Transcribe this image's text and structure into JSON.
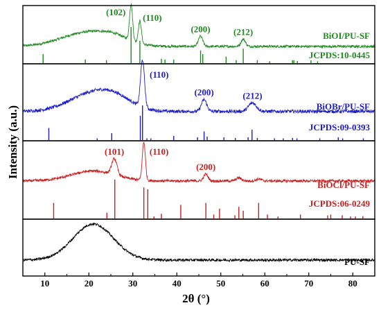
{
  "chart_data": {
    "type": "line",
    "xlabel": "2θ (°)",
    "ylabel": "Intensity (a.u.)",
    "xlim": [
      5,
      85
    ],
    "xticks": [
      10,
      20,
      30,
      40,
      50,
      60,
      70,
      80
    ],
    "grid": false,
    "panels": [
      {
        "sample_label": "BiOI/PU-SF",
        "jcpds_label": "JCPDS:10-0445",
        "color": "#1f8a1f",
        "peaks": [
          {
            "x": 29.6,
            "h": 1.0,
            "w": 0.35
          },
          {
            "x": 31.6,
            "h": 0.62,
            "w": 0.35
          },
          {
            "x": 45.4,
            "h": 0.28,
            "w": 0.5
          },
          {
            "x": 55.1,
            "h": 0.2,
            "w": 0.5
          }
        ],
        "hump": [
          {
            "c": 20.0,
            "h": 0.4,
            "w": 6.0
          },
          {
            "c": 26.0,
            "h": 0.12,
            "w": 3.0
          }
        ],
        "miller": [
          {
            "x": 29.6,
            "text": "(102)"
          },
          {
            "x": 31.6,
            "text": "(110)"
          },
          {
            "x": 45.4,
            "text": "(200)"
          },
          {
            "x": 55.1,
            "text": "(212)"
          }
        ],
        "sticks": [
          [
            9.6,
            0.25
          ],
          [
            19.2,
            0.1
          ],
          [
            24.0,
            0.08
          ],
          [
            29.6,
            1.0
          ],
          [
            31.6,
            0.62
          ],
          [
            36.5,
            0.12
          ],
          [
            37.3,
            0.1
          ],
          [
            39.3,
            0.1
          ],
          [
            45.4,
            0.35
          ],
          [
            45.9,
            0.25
          ],
          [
            51.2,
            0.18
          ],
          [
            53.5,
            0.08
          ],
          [
            55.1,
            0.4
          ],
          [
            58.3,
            0.08
          ],
          [
            61.1,
            0.05
          ],
          [
            66.3,
            0.08
          ],
          [
            66.6,
            0.08
          ],
          [
            67.4,
            0.06
          ],
          [
            70.5,
            0.08
          ],
          [
            72.0,
            0.05
          ]
        ]
      },
      {
        "sample_label": "BiOBr/PU-SF",
        "jcpds_label": "JCPDS:09-0393",
        "color": "#1c1ccc",
        "peaks": [
          {
            "x": 32.2,
            "h": 1.0,
            "w": 0.45
          },
          {
            "x": 46.2,
            "h": 0.25,
            "w": 0.6
          },
          {
            "x": 57.2,
            "h": 0.18,
            "w": 0.9
          }
        ],
        "hump": [
          {
            "c": 20.0,
            "h": 0.33,
            "w": 5.0
          },
          {
            "c": 26.0,
            "h": 0.25,
            "w": 4.0
          }
        ],
        "miller": [
          {
            "x": 32.2,
            "text": "(110)"
          },
          {
            "x": 46.2,
            "text": "(200)"
          },
          {
            "x": 57.2,
            "text": "(212)"
          }
        ],
        "sticks": [
          [
            10.9,
            0.35
          ],
          [
            21.9,
            0.05
          ],
          [
            25.2,
            0.2
          ],
          [
            31.7,
            0.7
          ],
          [
            32.2,
            1.0
          ],
          [
            33.2,
            0.05
          ],
          [
            34.1,
            0.05
          ],
          [
            39.3,
            0.12
          ],
          [
            44.7,
            0.08
          ],
          [
            46.2,
            0.25
          ],
          [
            46.9,
            0.1
          ],
          [
            50.7,
            0.08
          ],
          [
            53.3,
            0.06
          ],
          [
            56.2,
            0.08
          ],
          [
            57.1,
            0.3
          ],
          [
            58.3,
            0.06
          ],
          [
            62.2,
            0.05
          ],
          [
            64.2,
            0.05
          ],
          [
            66.3,
            0.06
          ],
          [
            67.3,
            0.05
          ],
          [
            72.5,
            0.05
          ],
          [
            76.7,
            0.08
          ],
          [
            77.7,
            0.05
          ],
          [
            82.4,
            0.05
          ]
        ]
      },
      {
        "sample_label": "BiOCl/PU-SF",
        "jcpds_label": "JCPDS:06-0249",
        "color": "#c81e1e",
        "peaks": [
          {
            "x": 25.8,
            "h": 0.42,
            "w": 0.6
          },
          {
            "x": 32.5,
            "h": 1.0,
            "w": 0.35
          },
          {
            "x": 46.6,
            "h": 0.18,
            "w": 0.5
          },
          {
            "x": 54.1,
            "h": 0.08,
            "w": 0.6
          },
          {
            "x": 58.6,
            "h": 0.05,
            "w": 0.6
          }
        ],
        "hump": [
          {
            "c": 21.0,
            "h": 0.26,
            "w": 5.0
          }
        ],
        "miller": [
          {
            "x": 25.8,
            "text": "(101)"
          },
          {
            "x": 32.5,
            "text": "(110)"
          },
          {
            "x": 46.6,
            "text": "(200)"
          }
        ],
        "sticks": [
          [
            12.0,
            0.4
          ],
          [
            24.1,
            0.15
          ],
          [
            25.9,
            1.0
          ],
          [
            32.5,
            0.8
          ],
          [
            33.4,
            0.75
          ],
          [
            34.8,
            0.05
          ],
          [
            36.5,
            0.12
          ],
          [
            40.9,
            0.35
          ],
          [
            46.6,
            0.4
          ],
          [
            48.4,
            0.1
          ],
          [
            49.7,
            0.25
          ],
          [
            53.2,
            0.08
          ],
          [
            54.1,
            0.3
          ],
          [
            55.1,
            0.2
          ],
          [
            58.6,
            0.4
          ],
          [
            60.6,
            0.1
          ],
          [
            63.0,
            0.05
          ],
          [
            68.1,
            0.1
          ],
          [
            74.3,
            0.08
          ],
          [
            75.0,
            0.1
          ],
          [
            77.6,
            0.08
          ],
          [
            79.5,
            0.05
          ],
          [
            80.6,
            0.05
          ],
          [
            82.3,
            0.06
          ]
        ]
      },
      {
        "sample_label": "PU-SF",
        "color": "#000000",
        "peaks": [],
        "hump": [
          {
            "c": 21.0,
            "h": 1.0,
            "w": 4.6
          }
        ],
        "miller": [],
        "sticks": []
      }
    ]
  }
}
